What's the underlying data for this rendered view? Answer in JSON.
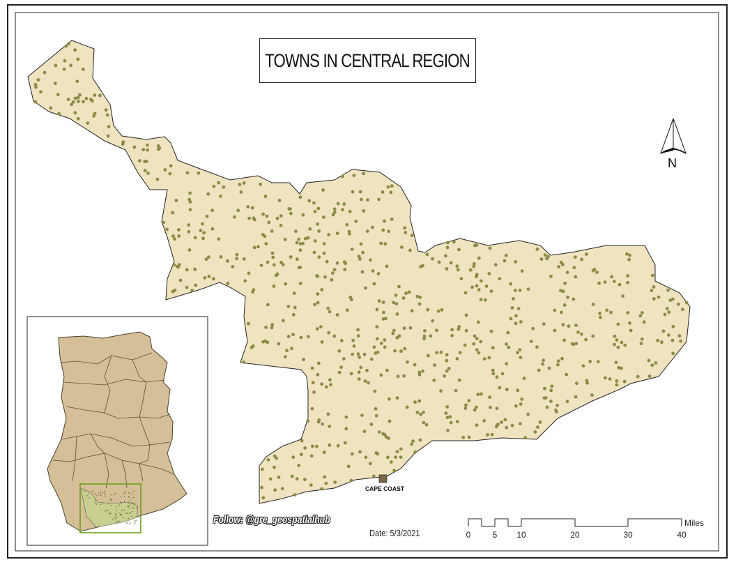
{
  "title": "TOWNS IN CENTRAL REGION",
  "north_arrow": {
    "letter": "N"
  },
  "capital_label": "CAPE COAST",
  "credit": "Follow: @gre_geospatialhub",
  "date": "Date: 5/3/2021",
  "scale_bar": {
    "ticks": [
      "0",
      "5",
      "10",
      "20",
      "30",
      "40"
    ],
    "units": "Miles"
  },
  "colors": {
    "region_fill": "#efe3c0",
    "town_point": "#8a8c46",
    "capital_marker": "#7a6548",
    "inset_fill": "#d5bf98",
    "inset_highlight": "#6c9e1c"
  },
  "towns": {
    "count": 730
  }
}
